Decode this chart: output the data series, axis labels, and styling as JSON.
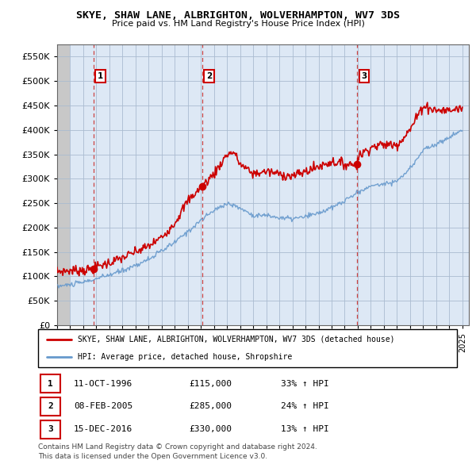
{
  "title": "SKYE, SHAW LANE, ALBRIGHTON, WOLVERHAMPTON, WV7 3DS",
  "subtitle": "Price paid vs. HM Land Registry's House Price Index (HPI)",
  "ylim": [
    0,
    575000
  ],
  "yticks": [
    0,
    50000,
    100000,
    150000,
    200000,
    250000,
    300000,
    350000,
    400000,
    450000,
    500000,
    550000
  ],
  "xlim_start": 1994.0,
  "xlim_end": 2025.5,
  "sales": [
    {
      "year": 1996.78,
      "price": 115000,
      "label": "1"
    },
    {
      "year": 2005.1,
      "price": 285000,
      "label": "2"
    },
    {
      "year": 2016.96,
      "price": 330000,
      "label": "3"
    }
  ],
  "vlines": [
    1996.78,
    2005.1,
    2016.96
  ],
  "legend_line1": "SKYE, SHAW LANE, ALBRIGHTON, WOLVERHAMPTON, WV7 3DS (detached house)",
  "legend_line2": "HPI: Average price, detached house, Shropshire",
  "table": [
    {
      "num": "1",
      "date": "11-OCT-1996",
      "price": "£115,000",
      "pct": "33% ↑ HPI"
    },
    {
      "num": "2",
      "date": "08-FEB-2005",
      "price": "£285,000",
      "pct": "24% ↑ HPI"
    },
    {
      "num": "3",
      "date": "15-DEC-2016",
      "price": "£330,000",
      "pct": "13% ↑ HPI"
    }
  ],
  "footer1": "Contains HM Land Registry data © Crown copyright and database right 2024.",
  "footer2": "This data is licensed under the Open Government Licence v3.0.",
  "line_color_red": "#cc0000",
  "line_color_blue": "#6699cc",
  "chart_bg": "#dde8f5",
  "hatch_bg": "#c8c8c8",
  "grid_color": "#aabbd0",
  "vline_color": "#cc4444"
}
